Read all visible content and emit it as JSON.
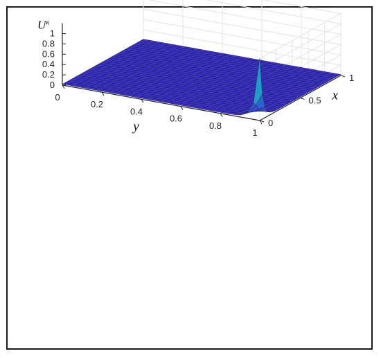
{
  "chart_data": {
    "type": "surface3d",
    "title": "",
    "xlabel": "x",
    "ylabel": "y",
    "zlabel_base": "U",
    "zlabel_sup": "κ",
    "x_ticks": [
      "0",
      "0.5",
      "1"
    ],
    "y_ticks": [
      "0",
      "0.2",
      "0.4",
      "0.6",
      "0.8",
      "1"
    ],
    "z_ticks": [
      "0",
      "0.2",
      "0.4",
      "0.6",
      "0.8",
      "1"
    ],
    "xlim": [
      0,
      1
    ],
    "ylim": [
      0,
      1
    ],
    "zlim": [
      0,
      1.2
    ],
    "grid": true,
    "colormap": "parula",
    "mesh_resolution": 31,
    "peak": {
      "x": 0.0,
      "y": 1.0,
      "z": 1.2
    },
    "background_level": 0.02,
    "colors": {
      "surface_low": "#3d2fd6",
      "surface_mid": "#1fa2c9",
      "surface_high": "#f5e81a",
      "mesh_edge": "#111111",
      "grid": "#e3e3e3"
    }
  }
}
